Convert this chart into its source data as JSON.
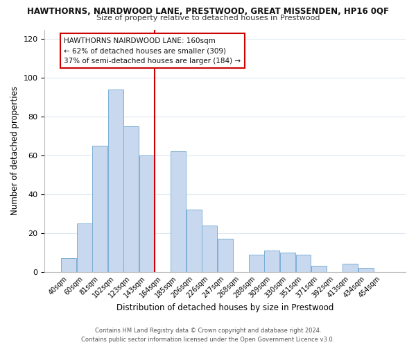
{
  "title_top": "HAWTHORNS, NAIRDWOOD LANE, PRESTWOOD, GREAT MISSENDEN, HP16 0QF",
  "title_sub": "Size of property relative to detached houses in Prestwood",
  "xlabel": "Distribution of detached houses by size in Prestwood",
  "ylabel": "Number of detached properties",
  "bar_labels": [
    "40sqm",
    "60sqm",
    "81sqm",
    "102sqm",
    "123sqm",
    "143sqm",
    "164sqm",
    "185sqm",
    "206sqm",
    "226sqm",
    "247sqm",
    "268sqm",
    "288sqm",
    "309sqm",
    "330sqm",
    "351sqm",
    "371sqm",
    "392sqm",
    "413sqm",
    "434sqm",
    "454sqm"
  ],
  "bar_values": [
    7,
    25,
    65,
    94,
    75,
    60,
    0,
    62,
    32,
    24,
    17,
    0,
    9,
    11,
    10,
    9,
    3,
    0,
    4,
    2,
    0
  ],
  "bar_color": "#c8d9ef",
  "bar_edge_color": "#7bafd4",
  "vline_x": 5.5,
  "vline_color": "#cc0000",
  "ylim": [
    0,
    125
  ],
  "yticks": [
    0,
    20,
    40,
    60,
    80,
    100,
    120
  ],
  "annotation_title": "HAWTHORNS NAIRDWOOD LANE: 160sqm",
  "annotation_line1": "← 62% of detached houses are smaller (309)",
  "annotation_line2": "37% of semi-detached houses are larger (184) →",
  "annotation_box_color": "#ffffff",
  "annotation_box_edge": "#cc0000",
  "footer_line1": "Contains HM Land Registry data © Crown copyright and database right 2024.",
  "footer_line2": "Contains public sector information licensed under the Open Government Licence v3.0.",
  "background_color": "#ffffff",
  "grid_color": "#dde8f4"
}
